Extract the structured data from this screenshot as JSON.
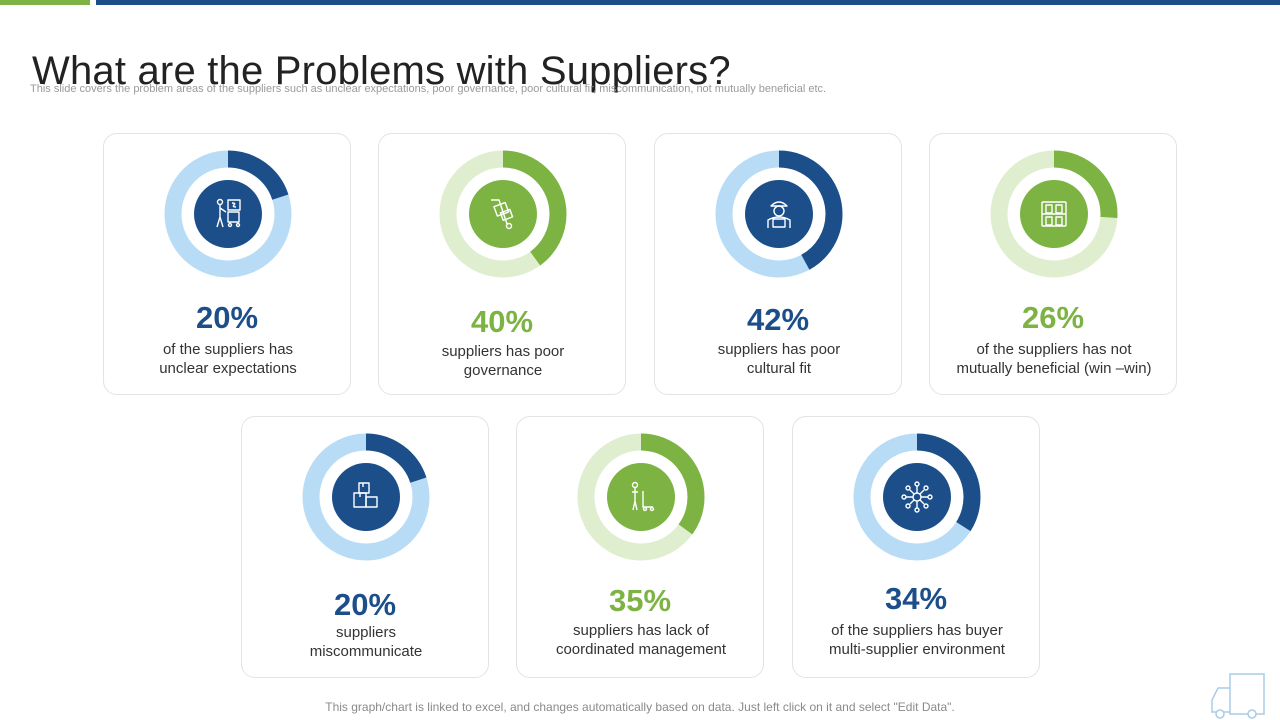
{
  "title": "What are the Problems with Suppliers?",
  "subtitle": "This slide covers the problem areas of the suppliers such as unclear expectations, poor governance, poor cultural fir, miscommunication,  not mutually beneficial etc.",
  "footer": "This graph/chart is linked to excel, and changes automatically based on data. Just left click on it and select \"Edit Data\".",
  "colors": {
    "blue": "#1c4f8a",
    "blue_light": "#b9dcf6",
    "green": "#7cb342",
    "green_light": "#e0eed0",
    "top_green": "#7cb342"
  },
  "chart_data": {
    "type": "pie",
    "variant": "donut",
    "items": [
      {
        "value": 20,
        "label": "20%",
        "description": [
          "of the suppliers has",
          "unclear expectations"
        ],
        "theme": "blue",
        "icon": "worker-cart-icon"
      },
      {
        "value": 40,
        "label": "40%",
        "description": [
          "suppliers has poor",
          "governance"
        ],
        "theme": "green",
        "icon": "hand-truck-icon"
      },
      {
        "value": 42,
        "label": "42%",
        "description": [
          "suppliers has poor",
          "cultural  fit"
        ],
        "theme": "blue",
        "icon": "delivery-person-icon"
      },
      {
        "value": 26,
        "label": "26%",
        "description": [
          "of the suppliers has not",
          "mutually  beneficial (win –win)"
        ],
        "theme": "green",
        "icon": "shelves-icon"
      },
      {
        "value": 20,
        "label": "20%",
        "description": [
          "suppliers",
          "miscommunicate"
        ],
        "theme": "blue",
        "icon": "boxes-icon"
      },
      {
        "value": 35,
        "label": "35%",
        "description": [
          "suppliers has lack of",
          "coordinated management"
        ],
        "theme": "green",
        "icon": "person-trolley-icon"
      },
      {
        "value": 34,
        "label": "34%",
        "description": [
          "of the suppliers has buyer",
          "multi-supplier environment"
        ],
        "theme": "blue",
        "icon": "network-icon"
      }
    ]
  }
}
